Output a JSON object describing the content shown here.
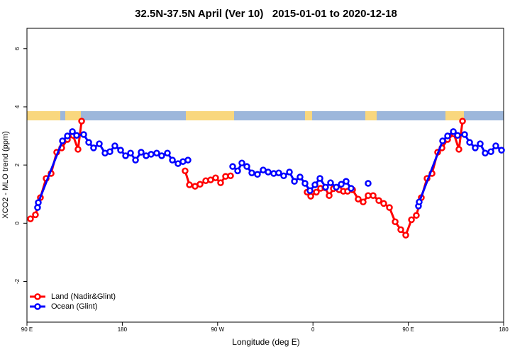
{
  "chart_data": {
    "type": "line",
    "title": "32.5N-37.5N April (Ver 10)   2015-01-01 to 2020-12-18",
    "x_label": "Longitude (deg E)",
    "y_label": "XCO2 - MLO trend (ppm)",
    "xlim": [
      90,
      540
    ],
    "xticks": [
      {
        "value": 90,
        "label": "90 E"
      },
      {
        "value": 180,
        "label": "180"
      },
      {
        "value": 270,
        "label": "90 W"
      },
      {
        "value": 360,
        "label": "0"
      },
      {
        "value": 450,
        "label": "90 E"
      },
      {
        "value": 540,
        "label": "180"
      }
    ],
    "ylim": [
      -3.4,
      6.7
    ],
    "yticks": [
      -2,
      0,
      2,
      4,
      6
    ],
    "legend": "bottom-left",
    "series": [
      {
        "name": "Land (Nadir&Glint)",
        "color": "#ff0000",
        "x": [
          93.3,
          98,
          102.7,
          108.1,
          112.8,
          118.1,
          122.8,
          128.2,
          133.5,
          138.2,
          141.6,
          null,
          239.3,
          243.4,
          248.7,
          253.4,
          258.8,
          263.4,
          268.1,
          272.8,
          277.5,
          282.2,
          null,
          354.5,
          357.9,
          363.2,
          367.2,
          371.3,
          375.3,
          379.3,
          384.7,
          388.7,
          392.7,
          397.4,
          402.7,
          407.4,
          412.1,
          416.8,
          422.2,
          426.8,
          432.2,
          437.6,
          442.9,
          447.6,
          453,
          457.6,
          462.3,
          467.7,
          472.4,
          477.7,
          481.8,
          487.1,
          493.1,
          497.8,
          501.2
        ],
        "values": [
          0.15,
          0.29,
          0.88,
          1.54,
          1.71,
          2.44,
          2.59,
          2.88,
          3.02,
          2.54,
          3.51,
          null,
          1.8,
          1.32,
          1.27,
          1.34,
          1.46,
          1.49,
          1.56,
          1.39,
          1.61,
          1.63,
          null,
          1.07,
          0.93,
          1.07,
          1.2,
          1.22,
          0.95,
          1.19,
          1.15,
          1.1,
          1.1,
          1.15,
          0.83,
          0.73,
          0.95,
          0.95,
          0.78,
          0.68,
          0.54,
          0.05,
          -0.22,
          -0.41,
          0.12,
          0.27,
          0.88,
          1.54,
          1.71,
          2.44,
          2.59,
          2.88,
          3.07,
          2.54,
          3.51
        ]
      },
      {
        "name": "Ocean (Glint)",
        "color": "#0000ff",
        "x": [
          100,
          100.7,
          123.5,
          128.2,
          132.9,
          136.9,
          143.6,
          148.3,
          152.9,
          158.3,
          163.7,
          168.3,
          173,
          178.4,
          183.1,
          187.8,
          192.5,
          197.8,
          202.5,
          207.2,
          212.5,
          217.2,
          222.6,
          227.3,
          232.6,
          237.3,
          242,
          null,
          284.2,
          288.9,
          292.9,
          297.6,
          302.3,
          307.6,
          313,
          317.7,
          323,
          327.7,
          332.4,
          337.8,
          342.5,
          347.8,
          352.5,
          357.2,
          361.9,
          366.6,
          371.9,
          376.6,
          382,
          386.7,
          391.3,
          396,
          null,
          412.1,
          null,
          459.6,
          460.3,
          482.4,
          487.1,
          492.5,
          496.5,
          503.2,
          507.9,
          513.2,
          517.9,
          522.6,
          528,
          532.6,
          538
        ],
        "values": [
          0.54,
          0.71,
          2.83,
          3,
          3.15,
          3.02,
          3.05,
          2.78,
          2.59,
          2.73,
          2.41,
          2.46,
          2.66,
          2.51,
          2.32,
          2.41,
          2.17,
          2.44,
          2.32,
          2.37,
          2.41,
          2.32,
          2.41,
          2.17,
          2.05,
          2.12,
          2.17,
          null,
          1.95,
          1.8,
          2.07,
          1.95,
          1.73,
          1.68,
          1.83,
          1.76,
          1.71,
          1.73,
          1.63,
          1.76,
          1.44,
          1.59,
          1.37,
          1.12,
          1.32,
          1.54,
          1.24,
          1.39,
          1.24,
          1.34,
          1.44,
          1.2,
          null,
          1.37,
          null,
          0.59,
          0.73,
          2.83,
          3,
          3.15,
          3.02,
          3.05,
          2.78,
          2.59,
          2.73,
          2.41,
          2.46,
          2.66,
          2.51
        ]
      }
    ]
  }
}
